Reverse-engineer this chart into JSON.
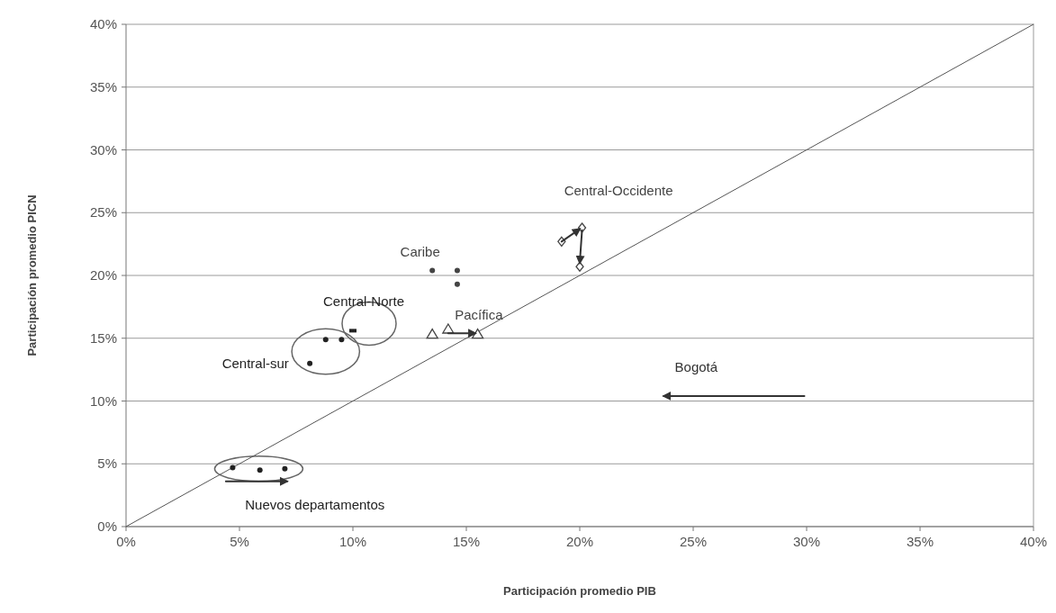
{
  "chart_data": {
    "type": "scatter",
    "xlabel": "Participación promedio PIB",
    "ylabel": "Participación promedio PICN",
    "xlim": [
      0,
      40
    ],
    "ylim": [
      0,
      40
    ],
    "xticks": [
      {
        "value": 0,
        "label": "0%"
      },
      {
        "value": 5,
        "label": "5%"
      },
      {
        "value": 10,
        "label": "10%"
      },
      {
        "value": 15,
        "label": "15%"
      },
      {
        "value": 20,
        "label": "20%"
      },
      {
        "value": 25,
        "label": "25%"
      },
      {
        "value": 30,
        "label": "30%"
      },
      {
        "value": 35,
        "label": "35%"
      },
      {
        "value": 40,
        "label": "40%"
      }
    ],
    "yticks": [
      {
        "value": 0,
        "label": "0%"
      },
      {
        "value": 5,
        "label": "5%"
      },
      {
        "value": 10,
        "label": "10%"
      },
      {
        "value": 15,
        "label": "15%"
      },
      {
        "value": 20,
        "label": "20%"
      },
      {
        "value": 25,
        "label": "25%"
      },
      {
        "value": 30,
        "label": "30%"
      },
      {
        "value": 35,
        "label": "35%"
      },
      {
        "value": 40,
        "label": "40%"
      }
    ],
    "grid": "y",
    "legend": false,
    "series": [
      {
        "type": "line",
        "color": "#555555",
        "x": [
          0,
          40
        ],
        "values": [
          0,
          40
        ]
      },
      {
        "name": "Nuevos departamentos",
        "marker": "circle",
        "color": "#222222",
        "x": [
          4.7,
          5.9,
          7.0
        ],
        "values": [
          4.7,
          4.5,
          4.6
        ]
      },
      {
        "name": "Central-sur",
        "marker": "circle",
        "color": "#222222",
        "x": [
          8.1,
          8.8,
          9.5
        ],
        "values": [
          13.0,
          14.9,
          14.9
        ]
      },
      {
        "name": "Central-Norte",
        "marker": "square",
        "color": "#222222",
        "x": [
          10.0
        ],
        "values": [
          15.6
        ]
      },
      {
        "name": "Caribe",
        "marker": "circle",
        "color": "#444444",
        "x": [
          13.5,
          14.6,
          14.6
        ],
        "values": [
          20.4,
          20.4,
          19.3
        ]
      },
      {
        "name": "Pacífica",
        "marker": "triangle",
        "color": "#444444",
        "x": [
          13.5,
          14.2,
          15.5
        ],
        "values": [
          15.3,
          15.7,
          15.3
        ]
      },
      {
        "name": "Central-Occidente",
        "marker": "diamond",
        "color": "#444444",
        "x": [
          19.2,
          20.1,
          20.0
        ],
        "values": [
          22.7,
          23.8,
          20.7
        ]
      },
      {
        "name": "Bogotá",
        "type": "line",
        "color": "#333333",
        "x": [
          29.9,
          23.7
        ],
        "values": [
          10.4,
          10.4
        ]
      },
      {
        "type": "line",
        "color": "#333333",
        "x": [
          4.4,
          7.1
        ],
        "values": [
          3.6,
          3.6
        ]
      },
      {
        "type": "line",
        "color": "#333333",
        "x": [
          14.2,
          15.4
        ],
        "values": [
          15.4,
          15.4
        ]
      },
      {
        "type": "line",
        "color": "#333333",
        "x": [
          19.2,
          20.0
        ],
        "values": [
          22.7,
          23.7
        ]
      },
      {
        "type": "line",
        "color": "#333333",
        "x": [
          20.1,
          20.0
        ],
        "values": [
          23.6,
          21.0
        ]
      }
    ]
  }
}
